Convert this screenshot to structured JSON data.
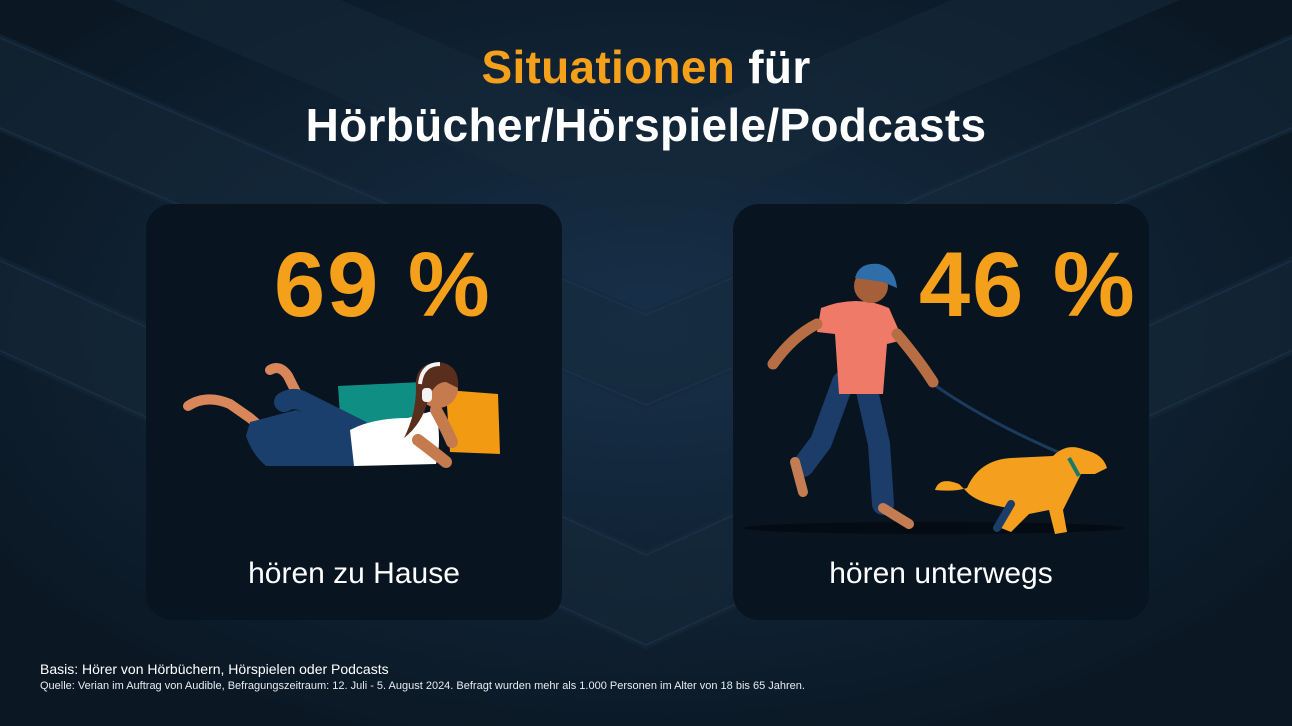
{
  "title": {
    "accent": "Situationen",
    "rest": " für",
    "line2": "Hörbücher/Hörspiele/Podcasts"
  },
  "cards": [
    {
      "value": "69 %",
      "caption": "hören zu Hause"
    },
    {
      "value": "46 %",
      "caption": "hören unterwegs"
    }
  ],
  "footer": {
    "basis": "Basis: Hörer von Hörbüchern, Hörspielen oder Podcasts",
    "source": "Quelle: Verian im Auftrag von Audible, Befragungszeitraum: 12. Juli - 5. August 2024. Befragt wurden mehr als 1.000 Personen im Alter von 18 bis 65 Jahren."
  },
  "colors": {
    "background": "#0f1f2e",
    "card": "#081420",
    "accent": "#f5a01a",
    "text": "#ffffff"
  }
}
